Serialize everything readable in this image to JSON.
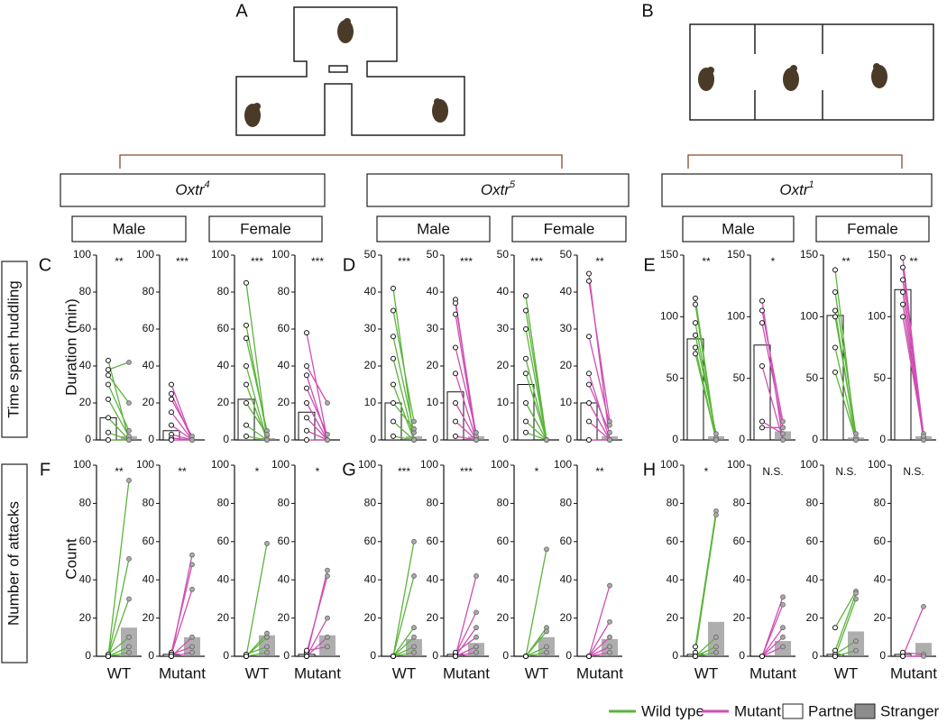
{
  "diagram_labels": [
    "A",
    "B"
  ],
  "groups": [
    {
      "gene": "Oxtr",
      "allele": "4",
      "sexes": [
        "Male",
        "Female"
      ]
    },
    {
      "gene": "Oxtr",
      "allele": "5",
      "sexes": [
        "Male",
        "Female"
      ]
    },
    {
      "gene": "Oxtr",
      "allele": "1",
      "sexes": [
        "Male",
        "Female"
      ]
    }
  ],
  "rows": [
    "Time spent huddling",
    "Number of attacks"
  ],
  "ylabels": [
    "Duration (min)",
    "Count"
  ],
  "legend": [
    {
      "name": "Wild type",
      "color": "#5cb43c"
    },
    {
      "name": "Mutant",
      "color": "#cf4fb2"
    },
    {
      "name": "Partner",
      "color": "#ffffff"
    },
    {
      "name": "Stranger",
      "color": "#8c8c8c"
    }
  ],
  "chart_data": [
    {
      "type": "paired-bar",
      "panel": "C",
      "annotation": "**",
      "color": "#5cb43c",
      "ylim": [
        0,
        100
      ],
      "yticks": [
        0,
        20,
        40,
        60,
        80,
        100
      ],
      "values": [
        12,
        2
      ],
      "partner": [
        43,
        38,
        35,
        30,
        22,
        12,
        4,
        0
      ],
      "stranger": [
        0,
        42,
        20,
        5,
        2,
        0,
        0,
        0
      ]
    },
    {
      "type": "paired-bar",
      "annotation": "***",
      "color": "#cf4fb2",
      "ylim": [
        0,
        100
      ],
      "yticks": [
        0,
        20,
        40,
        60,
        80,
        100
      ],
      "values": [
        5,
        0
      ],
      "partner": [
        30,
        25,
        22,
        15,
        8,
        3,
        1,
        0
      ],
      "stranger": [
        0,
        0,
        2,
        0,
        0,
        0,
        0,
        0
      ]
    },
    {
      "type": "paired-bar",
      "annotation": "***",
      "color": "#5cb43c",
      "ylim": [
        0,
        100
      ],
      "yticks": [
        0,
        20,
        40,
        60,
        80,
        100
      ],
      "values": [
        22,
        1
      ],
      "partner": [
        85,
        62,
        55,
        40,
        30,
        20,
        8,
        2
      ],
      "stranger": [
        0,
        2,
        5,
        0,
        0,
        3,
        0,
        0
      ]
    },
    {
      "type": "paired-bar",
      "annotation": "***",
      "color": "#cf4fb2",
      "ylim": [
        0,
        100
      ],
      "yticks": [
        0,
        20,
        40,
        60,
        80,
        100
      ],
      "values": [
        15,
        0
      ],
      "partner": [
        58,
        40,
        35,
        28,
        20,
        12,
        5,
        0
      ],
      "stranger": [
        0,
        20,
        0,
        3,
        0,
        0,
        0,
        0
      ]
    },
    {
      "type": "paired-bar",
      "panel": "D",
      "annotation": "***",
      "color": "#5cb43c",
      "ylim": [
        0,
        50
      ],
      "yticks": [
        0,
        10,
        20,
        30,
        40,
        50
      ],
      "values": [
        10,
        1
      ],
      "partner": [
        41,
        35,
        28,
        22,
        15,
        10,
        5,
        1
      ],
      "stranger": [
        0,
        5,
        2,
        0,
        0,
        3,
        0,
        0
      ]
    },
    {
      "type": "paired-bar",
      "annotation": "***",
      "color": "#cf4fb2",
      "ylim": [
        0,
        50
      ],
      "yticks": [
        0,
        10,
        20,
        30,
        40,
        50
      ],
      "values": [
        13,
        1
      ],
      "partner": [
        38,
        37,
        34,
        25,
        18,
        10,
        5,
        1
      ],
      "stranger": [
        0,
        1,
        0,
        2,
        0,
        0,
        0,
        0
      ]
    },
    {
      "type": "paired-bar",
      "annotation": "***",
      "color": "#5cb43c",
      "ylim": [
        0,
        50
      ],
      "yticks": [
        0,
        10,
        20,
        30,
        40,
        50
      ],
      "values": [
        15,
        0
      ],
      "partner": [
        39,
        35,
        30,
        22,
        18,
        10,
        5,
        2
      ],
      "stranger": [
        0,
        0,
        0,
        0,
        0,
        0,
        0,
        0
      ]
    },
    {
      "type": "paired-bar",
      "annotation": "**",
      "color": "#cf4fb2",
      "ylim": [
        0,
        50
      ],
      "yticks": [
        0,
        10,
        20,
        30,
        40,
        50
      ],
      "values": [
        10,
        1
      ],
      "partner": [
        45,
        43,
        28,
        18,
        15,
        10,
        5,
        0
      ],
      "stranger": [
        0,
        5,
        4,
        0,
        2,
        0,
        0,
        0
      ]
    },
    {
      "type": "paired-bar",
      "panel": "E",
      "annotation": "**",
      "color": "#5cb43c",
      "ylim": [
        0,
        150
      ],
      "yticks": [
        0,
        50,
        100,
        150
      ],
      "values": [
        82,
        3
      ],
      "partner": [
        115,
        110,
        95,
        85,
        75,
        70
      ],
      "stranger": [
        0,
        0,
        2,
        5,
        0,
        0
      ]
    },
    {
      "type": "paired-bar",
      "annotation": "*",
      "color": "#cf4fb2",
      "ylim": [
        0,
        150
      ],
      "yticks": [
        0,
        50,
        100,
        150
      ],
      "values": [
        77,
        7
      ],
      "partner": [
        113,
        105,
        95,
        60,
        15,
        10
      ],
      "stranger": [
        0,
        15,
        10,
        0,
        5,
        10
      ]
    },
    {
      "type": "paired-bar",
      "annotation": "**",
      "color": "#5cb43c",
      "ylim": [
        0,
        150
      ],
      "yticks": [
        0,
        50,
        100,
        150
      ],
      "values": [
        101,
        2
      ],
      "partner": [
        138,
        120,
        105,
        100,
        75,
        55
      ],
      "stranger": [
        0,
        5,
        0,
        2,
        0,
        0
      ]
    },
    {
      "type": "paired-bar",
      "annotation": "**",
      "color": "#cf4fb2",
      "ylim": [
        0,
        150
      ],
      "yticks": [
        0,
        50,
        100,
        150
      ],
      "values": [
        122,
        3
      ],
      "partner": [
        148,
        140,
        130,
        120,
        110,
        100
      ],
      "stranger": [
        0,
        5,
        2,
        0,
        0,
        3
      ]
    },
    {
      "type": "paired-bar",
      "panel": "F",
      "annotation": "**",
      "xlabel": "WT",
      "color": "#5cb43c",
      "ylim": [
        0,
        100
      ],
      "yticks": [
        0,
        20,
        40,
        60,
        80,
        100
      ],
      "values": [
        0,
        15
      ],
      "partner": [
        0,
        0,
        0,
        1,
        0,
        0
      ],
      "stranger": [
        92,
        51,
        30,
        10,
        5,
        2
      ]
    },
    {
      "type": "paired-bar",
      "annotation": "**",
      "xlabel": "Mutant",
      "color": "#cf4fb2",
      "ylim": [
        0,
        100
      ],
      "yticks": [
        0,
        20,
        40,
        60,
        80,
        100
      ],
      "values": [
        1,
        10
      ],
      "partner": [
        0,
        2,
        1,
        0,
        1,
        0
      ],
      "stranger": [
        53,
        48,
        35,
        10,
        5,
        2
      ]
    },
    {
      "type": "paired-bar",
      "annotation": "*",
      "xlabel": "WT",
      "color": "#5cb43c",
      "ylim": [
        0,
        100
      ],
      "yticks": [
        0,
        20,
        40,
        60,
        80,
        100
      ],
      "values": [
        0,
        11
      ],
      "partner": [
        0,
        0,
        0,
        1,
        0
      ],
      "stranger": [
        59,
        12,
        10,
        5,
        2
      ]
    },
    {
      "type": "paired-bar",
      "annotation": "*",
      "xlabel": "Mutant",
      "color": "#cf4fb2",
      "ylim": [
        0,
        100
      ],
      "yticks": [
        0,
        20,
        40,
        60,
        80,
        100
      ],
      "values": [
        1,
        11
      ],
      "partner": [
        0,
        2,
        0,
        0,
        3
      ],
      "stranger": [
        45,
        42,
        20,
        10,
        5
      ]
    },
    {
      "type": "paired-bar",
      "panel": "G",
      "annotation": "***",
      "xlabel": "WT",
      "color": "#5cb43c",
      "ylim": [
        0,
        100
      ],
      "yticks": [
        0,
        20,
        40,
        60,
        80,
        100
      ],
      "values": [
        0,
        9
      ],
      "partner": [
        0,
        0,
        0,
        0,
        0,
        0
      ],
      "stranger": [
        60,
        42,
        15,
        10,
        5,
        2
      ]
    },
    {
      "type": "paired-bar",
      "annotation": "***",
      "xlabel": "Mutant",
      "color": "#cf4fb2",
      "ylim": [
        0,
        100
      ],
      "yticks": [
        0,
        20,
        40,
        60,
        80,
        100
      ],
      "values": [
        1,
        7
      ],
      "partner": [
        0,
        1,
        0,
        2,
        0,
        0
      ],
      "stranger": [
        42,
        23,
        15,
        10,
        5,
        2
      ]
    },
    {
      "type": "paired-bar",
      "annotation": "*",
      "xlabel": "WT",
      "color": "#5cb43c",
      "ylim": [
        0,
        100
      ],
      "yticks": [
        0,
        20,
        40,
        60,
        80,
        100
      ],
      "values": [
        0,
        10
      ],
      "partner": [
        0,
        0,
        0,
        0,
        0
      ],
      "stranger": [
        56,
        15,
        13,
        5,
        2
      ]
    },
    {
      "type": "paired-bar",
      "annotation": "**",
      "xlabel": "Mutant",
      "color": "#cf4fb2",
      "ylim": [
        0,
        100
      ],
      "yticks": [
        0,
        20,
        40,
        60,
        80,
        100
      ],
      "values": [
        0,
        9
      ],
      "partner": [
        0,
        0,
        0,
        0,
        0
      ],
      "stranger": [
        37,
        18,
        10,
        5,
        2
      ]
    },
    {
      "type": "paired-bar",
      "panel": "H",
      "annotation": "*",
      "xlabel": "WT",
      "color": "#5cb43c",
      "ylim": [
        0,
        100
      ],
      "yticks": [
        0,
        20,
        40,
        60,
        80,
        100
      ],
      "values": [
        1,
        18
      ],
      "partner": [
        5,
        2,
        0,
        0,
        0
      ],
      "stranger": [
        76,
        74,
        10,
        5,
        2
      ]
    },
    {
      "type": "paired-bar",
      "annotation": "N.S.",
      "xlabel": "Mutant",
      "color": "#cf4fb2",
      "ylim": [
        0,
        100
      ],
      "yticks": [
        0,
        20,
        40,
        60,
        80,
        100
      ],
      "values": [
        0,
        8
      ],
      "partner": [
        0,
        0,
        0,
        0,
        0
      ],
      "stranger": [
        31,
        27,
        15,
        10,
        5
      ]
    },
    {
      "type": "paired-bar",
      "annotation": "N.S.",
      "xlabel": "WT",
      "color": "#5cb43c",
      "ylim": [
        0,
        100
      ],
      "yticks": [
        0,
        20,
        40,
        60,
        80,
        100
      ],
      "values": [
        1,
        13
      ],
      "partner": [
        15,
        3,
        0,
        1,
        0
      ],
      "stranger": [
        34,
        33,
        30,
        8,
        3
      ]
    },
    {
      "type": "paired-bar",
      "annotation": "N.S.",
      "xlabel": "Mutant",
      "color": "#cf4fb2",
      "ylim": [
        0,
        100
      ],
      "yticks": [
        0,
        20,
        40,
        60,
        80,
        100
      ],
      "values": [
        1,
        7
      ],
      "partner": [
        0,
        2,
        0
      ],
      "stranger": [
        26,
        1,
        0
      ]
    }
  ]
}
